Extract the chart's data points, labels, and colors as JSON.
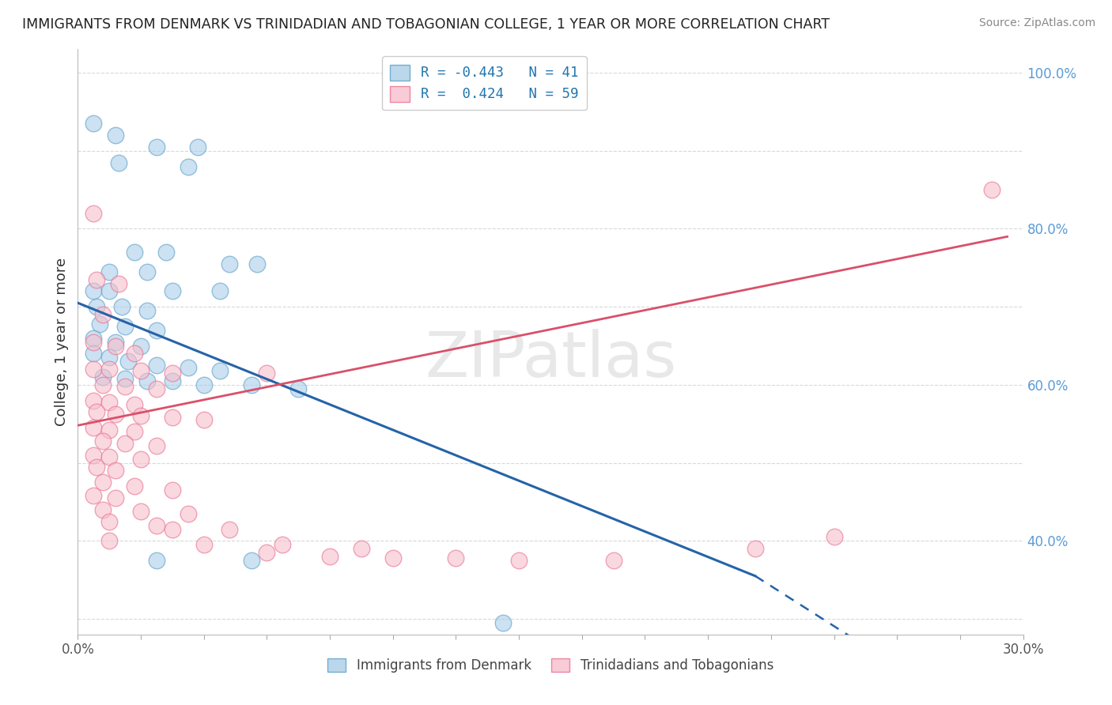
{
  "title": "IMMIGRANTS FROM DENMARK VS TRINIDADIAN AND TOBAGONIAN COLLEGE, 1 YEAR OR MORE CORRELATION CHART",
  "source": "Source: ZipAtlas.com",
  "ylabel": "College, 1 year or more",
  "xlim": [
    0.0,
    0.3
  ],
  "ylim": [
    0.28,
    1.03
  ],
  "legend_r_blue": "-0.443",
  "legend_n_blue": "41",
  "legend_r_pink": "0.424",
  "legend_n_pink": "59",
  "legend_label_blue": "Immigrants from Denmark",
  "legend_label_pink": "Trinidadians and Tobagonians",
  "blue_color": "#aacde8",
  "pink_color": "#f7bfcc",
  "blue_edge_color": "#5a9fc9",
  "pink_edge_color": "#e87090",
  "blue_line_color": "#2563a8",
  "pink_line_color": "#d9506a",
  "blue_scatter": [
    [
      0.005,
      0.935
    ],
    [
      0.012,
      0.92
    ],
    [
      0.025,
      0.905
    ],
    [
      0.038,
      0.905
    ],
    [
      0.013,
      0.885
    ],
    [
      0.035,
      0.88
    ],
    [
      0.018,
      0.77
    ],
    [
      0.028,
      0.77
    ],
    [
      0.048,
      0.755
    ],
    [
      0.057,
      0.755
    ],
    [
      0.01,
      0.745
    ],
    [
      0.022,
      0.745
    ],
    [
      0.005,
      0.72
    ],
    [
      0.01,
      0.72
    ],
    [
      0.03,
      0.72
    ],
    [
      0.045,
      0.72
    ],
    [
      0.006,
      0.7
    ],
    [
      0.014,
      0.7
    ],
    [
      0.022,
      0.695
    ],
    [
      0.007,
      0.678
    ],
    [
      0.015,
      0.675
    ],
    [
      0.025,
      0.67
    ],
    [
      0.005,
      0.66
    ],
    [
      0.012,
      0.655
    ],
    [
      0.02,
      0.65
    ],
    [
      0.005,
      0.64
    ],
    [
      0.01,
      0.635
    ],
    [
      0.016,
      0.63
    ],
    [
      0.025,
      0.625
    ],
    [
      0.035,
      0.622
    ],
    [
      0.045,
      0.618
    ],
    [
      0.008,
      0.61
    ],
    [
      0.015,
      0.608
    ],
    [
      0.022,
      0.605
    ],
    [
      0.03,
      0.605
    ],
    [
      0.04,
      0.6
    ],
    [
      0.055,
      0.6
    ],
    [
      0.07,
      0.595
    ],
    [
      0.135,
      0.295
    ],
    [
      0.055,
      0.375
    ],
    [
      0.025,
      0.375
    ]
  ],
  "pink_scatter": [
    [
      0.005,
      0.82
    ],
    [
      0.29,
      0.85
    ],
    [
      0.006,
      0.735
    ],
    [
      0.013,
      0.73
    ],
    [
      0.008,
      0.69
    ],
    [
      0.005,
      0.655
    ],
    [
      0.012,
      0.65
    ],
    [
      0.018,
      0.64
    ],
    [
      0.005,
      0.62
    ],
    [
      0.01,
      0.62
    ],
    [
      0.02,
      0.618
    ],
    [
      0.03,
      0.615
    ],
    [
      0.06,
      0.615
    ],
    [
      0.008,
      0.6
    ],
    [
      0.015,
      0.598
    ],
    [
      0.025,
      0.595
    ],
    [
      0.005,
      0.58
    ],
    [
      0.01,
      0.578
    ],
    [
      0.018,
      0.575
    ],
    [
      0.006,
      0.565
    ],
    [
      0.012,
      0.562
    ],
    [
      0.02,
      0.56
    ],
    [
      0.03,
      0.558
    ],
    [
      0.04,
      0.555
    ],
    [
      0.005,
      0.545
    ],
    [
      0.01,
      0.542
    ],
    [
      0.018,
      0.54
    ],
    [
      0.008,
      0.528
    ],
    [
      0.015,
      0.525
    ],
    [
      0.025,
      0.522
    ],
    [
      0.005,
      0.51
    ],
    [
      0.01,
      0.508
    ],
    [
      0.02,
      0.505
    ],
    [
      0.006,
      0.495
    ],
    [
      0.012,
      0.49
    ],
    [
      0.008,
      0.475
    ],
    [
      0.018,
      0.47
    ],
    [
      0.005,
      0.458
    ],
    [
      0.012,
      0.455
    ],
    [
      0.008,
      0.44
    ],
    [
      0.02,
      0.438
    ],
    [
      0.01,
      0.425
    ],
    [
      0.025,
      0.42
    ],
    [
      0.03,
      0.415
    ],
    [
      0.01,
      0.4
    ],
    [
      0.04,
      0.395
    ],
    [
      0.06,
      0.385
    ],
    [
      0.08,
      0.38
    ],
    [
      0.1,
      0.378
    ],
    [
      0.14,
      0.375
    ],
    [
      0.03,
      0.465
    ],
    [
      0.035,
      0.435
    ],
    [
      0.048,
      0.415
    ],
    [
      0.065,
      0.395
    ],
    [
      0.09,
      0.39
    ],
    [
      0.12,
      0.378
    ],
    [
      0.17,
      0.375
    ],
    [
      0.215,
      0.39
    ],
    [
      0.24,
      0.405
    ]
  ],
  "watermark": "ZIPatlas",
  "background_color": "#ffffff",
  "grid_color": "#d0d0d0"
}
